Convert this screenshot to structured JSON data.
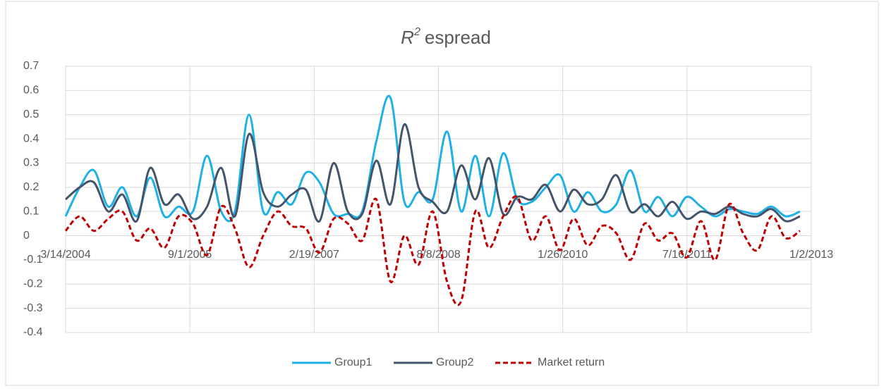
{
  "chart_data": {
    "type": "line",
    "title": {
      "symbol": "R",
      "superscript": "2",
      "text": "espread"
    },
    "x": [
      "2004-03-14",
      "2004-05-14",
      "2004-07-14",
      "2004-09-14",
      "2004-11-14",
      "2005-01-14",
      "2005-03-14",
      "2005-05-14",
      "2005-07-14",
      "2005-09-14",
      "2005-11-14",
      "2006-01-14",
      "2006-03-14",
      "2006-05-14",
      "2006-07-14",
      "2006-09-14",
      "2006-11-14",
      "2007-01-14",
      "2007-03-14",
      "2007-05-14",
      "2007-07-14",
      "2007-09-14",
      "2007-11-14",
      "2008-01-14",
      "2008-03-14",
      "2008-05-14",
      "2008-07-14",
      "2008-09-14",
      "2008-11-14",
      "2009-01-14",
      "2009-03-14",
      "2009-05-14",
      "2009-07-14",
      "2009-09-14",
      "2009-11-14",
      "2010-01-14",
      "2010-03-14",
      "2010-05-14",
      "2010-07-14",
      "2010-09-14",
      "2010-11-14",
      "2011-01-14",
      "2011-03-14",
      "2011-05-14",
      "2011-07-14",
      "2011-09-14",
      "2011-11-14",
      "2012-01-14",
      "2012-03-14",
      "2012-05-14",
      "2012-07-14",
      "2012-09-14",
      "2012-11-14"
    ],
    "series": [
      {
        "name": "Group1",
        "color": "#1fb0e6",
        "dash": false,
        "values": [
          0.08,
          0.2,
          0.27,
          0.12,
          0.2,
          0.08,
          0.24,
          0.08,
          0.12,
          0.1,
          0.33,
          0.1,
          0.1,
          0.5,
          0.1,
          0.18,
          0.13,
          0.26,
          0.22,
          0.09,
          0.09,
          0.1,
          0.39,
          0.57,
          0.14,
          0.18,
          0.15,
          0.43,
          0.1,
          0.33,
          0.08,
          0.34,
          0.15,
          0.14,
          0.2,
          0.25,
          0.1,
          0.18,
          0.1,
          0.13,
          0.27,
          0.1,
          0.16,
          0.08,
          0.16,
          0.12,
          0.08,
          0.11,
          0.1,
          0.09,
          0.12,
          0.08,
          0.1
        ]
      },
      {
        "name": "Group2",
        "color": "#44546a",
        "dash": false,
        "values": [
          0.15,
          0.2,
          0.22,
          0.1,
          0.17,
          0.06,
          0.28,
          0.13,
          0.17,
          0.07,
          0.12,
          0.28,
          0.08,
          0.42,
          0.18,
          0.12,
          0.17,
          0.19,
          0.06,
          0.3,
          0.1,
          0.09,
          0.31,
          0.13,
          0.46,
          0.2,
          0.14,
          0.1,
          0.29,
          0.15,
          0.32,
          0.09,
          0.16,
          0.15,
          0.21,
          0.1,
          0.19,
          0.13,
          0.15,
          0.25,
          0.1,
          0.13,
          0.08,
          0.14,
          0.07,
          0.1,
          0.09,
          0.12,
          0.09,
          0.08,
          0.11,
          0.06,
          0.08
        ]
      },
      {
        "name": "Market return",
        "color": "#c00000",
        "dash": true,
        "values": [
          0.02,
          0.08,
          0.02,
          0.07,
          0.1,
          -0.02,
          0.03,
          -0.05,
          0.08,
          0.05,
          -0.08,
          0.12,
          0.03,
          -0.13,
          0,
          0.1,
          0.04,
          0.03,
          -0.07,
          0.07,
          0.05,
          -0.02,
          0.15,
          -0.19,
          0,
          -0.12,
          0.1,
          -0.19,
          -0.27,
          0.1,
          -0.05,
          0.08,
          0.16,
          -0.02,
          0.08,
          -0.06,
          0.07,
          -0.04,
          0.04,
          0.01,
          -0.1,
          0.05,
          -0.02,
          0.01,
          -0.09,
          0.06,
          -0.1,
          0.13,
          0.01,
          -0.06,
          0.08,
          -0.01,
          0.02
        ]
      }
    ],
    "xlim": [
      "2004-03-14",
      "2013-01-02"
    ],
    "xticks": [
      {
        "value": "2004-03-14",
        "label": "3/14/2004"
      },
      {
        "value": "2005-09-01",
        "label": "9/1/2005"
      },
      {
        "value": "2007-02-19",
        "label": "2/19/2007"
      },
      {
        "value": "2008-08-08",
        "label": "8/8/2008"
      },
      {
        "value": "2010-01-26",
        "label": "1/26/2010"
      },
      {
        "value": "2011-07-16",
        "label": "7/16/2011"
      },
      {
        "value": "2013-01-02",
        "label": "1/2/2013"
      }
    ],
    "ylim": [
      -0.4,
      0.7
    ],
    "yticks": [
      -0.4,
      -0.3,
      -0.2,
      -0.1,
      0,
      0.1,
      0.2,
      0.3,
      0.4,
      0.5,
      0.6,
      0.7
    ],
    "grid": true,
    "legend": "bottom"
  }
}
